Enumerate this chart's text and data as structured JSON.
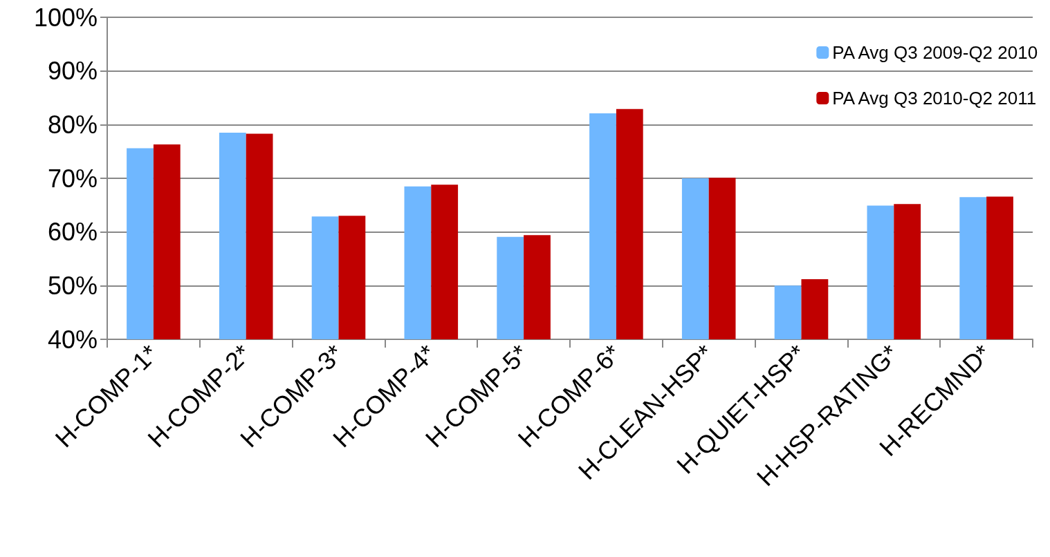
{
  "chart_data": {
    "type": "bar",
    "categories": [
      "H-COMP-1*",
      "H-COMP-2*",
      "H-COMP-3*",
      "H-COMP-4*",
      "H-COMP-5*",
      "H-COMP-6*",
      "H-CLEAN-HSP*",
      "H-QUIET-HSP*",
      "H-HSP-RATING*",
      "H-RECMND*"
    ],
    "series": [
      {
        "name": "PA Avg Q3 2009-Q2 2010",
        "color": "#6fb7ff",
        "values": [
          75.6,
          78.5,
          62.9,
          68.5,
          59.1,
          82.1,
          70.0,
          50.0,
          64.9,
          66.5
        ]
      },
      {
        "name": "PA Avg Q3 2010-Q2 2011",
        "color": "#c00000",
        "values": [
          76.3,
          78.3,
          63.0,
          68.8,
          59.4,
          82.9,
          70.1,
          51.2,
          65.2,
          66.6
        ]
      }
    ],
    "ylim": [
      40,
      100
    ],
    "yticks": [
      {
        "value": 40,
        "label": "40%"
      },
      {
        "value": 50,
        "label": "50%"
      },
      {
        "value": 60,
        "label": "60%"
      },
      {
        "value": 70,
        "label": "70%"
      },
      {
        "value": 80,
        "label": "80%"
      },
      {
        "value": 90,
        "label": "90%"
      },
      {
        "value": 100,
        "label": "100%"
      }
    ],
    "grid": "y",
    "legend": "top right"
  }
}
